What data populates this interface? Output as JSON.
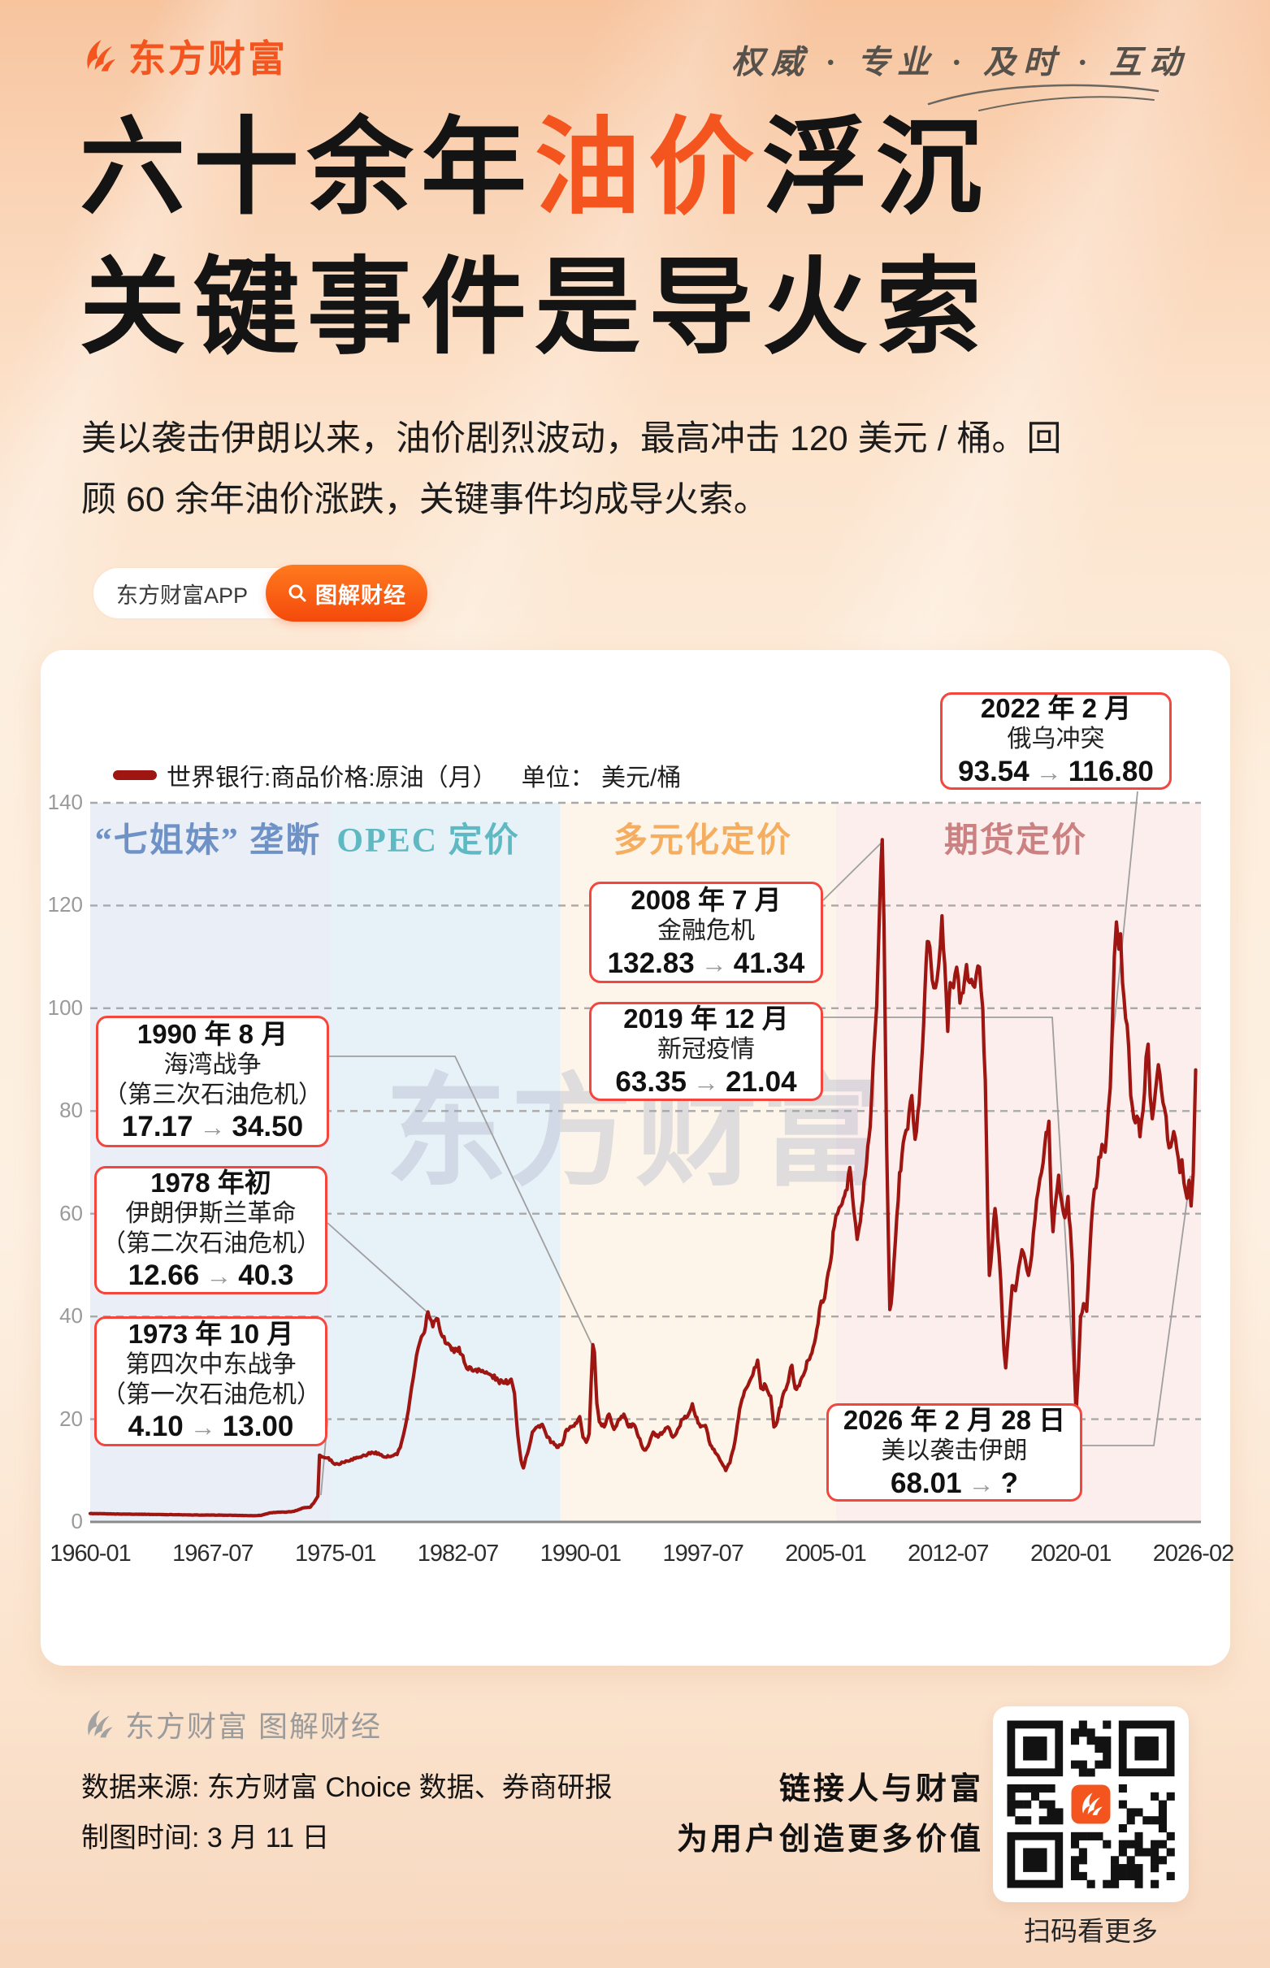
{
  "header": {
    "brand": "东方财富",
    "tagline": "权威 · 专业 · 及时 · 互动"
  },
  "title": {
    "part1": "六十余年",
    "highlight": "油价",
    "part2": "浮沉",
    "line2": "关键事件是导火索"
  },
  "intro": {
    "line1": "美以袭击伊朗以来，油价剧烈波动，最高冲击 120 美元 / 桶。回",
    "line2": "顾 60 余年油价涨跌，关键事件均成导火索。"
  },
  "tags": {
    "app": "东方财富APP",
    "channel": "图解财经"
  },
  "chart_data": {
    "type": "line",
    "legend_label": "世界银行:商品价格:原油（月）",
    "unit_label": "单位： 美元/桶",
    "line_color": "#9E1511",
    "grid": "horizontal dashed",
    "ylim": [
      0,
      140
    ],
    "yticks": [
      0,
      20,
      40,
      60,
      80,
      100,
      120,
      140
    ],
    "xticks": [
      "1960-01",
      "1967-07",
      "1975-01",
      "1982-07",
      "1990-01",
      "1997-07",
      "2005-01",
      "2012-07",
      "2020-01",
      "2026-02"
    ],
    "watermark": "东方财富",
    "eras": [
      {
        "label": "“七姐妹” 垄断",
        "color": "#6E92C6",
        "band": "#EAEEF7",
        "t_start": 1960.0,
        "t_end": 1974.75
      },
      {
        "label": "OPEC 定价",
        "color": "#5FB9C2",
        "band": "#E7F1F8",
        "t_start": 1974.75,
        "t_end": 1988.8
      },
      {
        "label": "多元化定价",
        "color": "#F5AD60",
        "band": "#FDF5EA",
        "t_start": 1988.8,
        "t_end": 2005.7
      },
      {
        "label": "期货定价",
        "color": "#CB8181",
        "band": "#FBEEEC",
        "t_start": 2005.7,
        "t_end": 2026.45
      }
    ],
    "annotations": [
      {
        "date": "1973 年 10 月",
        "lines": [
          "第四次中东战争",
          "（第一次石油危机）"
        ],
        "from": "4.10",
        "to": "13.00"
      },
      {
        "date": "1978 年初",
        "lines": [
          "伊朗伊斯兰革命",
          "（第二次石油危机）"
        ],
        "from": "12.66",
        "to": "40.3"
      },
      {
        "date": "1990 年 8 月",
        "lines": [
          "海湾战争",
          "（第三次石油危机）"
        ],
        "from": "17.17",
        "to": "34.50"
      },
      {
        "date": "2008 年 7 月",
        "lines": [
          "金融危机"
        ],
        "from": "132.83",
        "to": "41.34"
      },
      {
        "date": "2019 年 12 月",
        "lines": [
          "新冠疫情"
        ],
        "from": "63.35",
        "to": "21.04"
      },
      {
        "date": "2022 年 2 月",
        "lines": [
          "俄乌冲突"
        ],
        "from": "93.54",
        "to": "116.80"
      },
      {
        "date": "2026 年 2 月 28 日",
        "lines": [
          "美以袭击伊朗"
        ],
        "from": "68.01",
        "to": "?"
      }
    ],
    "series": [
      {
        "name": "世界银行:商品价格:原油（月）",
        "unit": "美元/桶",
        "points": [
          [
            1960,
            1.63
          ],
          [
            1961,
            1.57
          ],
          [
            1962,
            1.52
          ],
          [
            1963,
            1.5
          ],
          [
            1964,
            1.45
          ],
          [
            1965,
            1.42
          ],
          [
            1966,
            1.36
          ],
          [
            1967,
            1.33
          ],
          [
            1968,
            1.32
          ],
          [
            1969,
            1.27
          ],
          [
            1970,
            1.21
          ],
          [
            1970.5,
            1.3
          ],
          [
            1971,
            1.75
          ],
          [
            1971.5,
            1.9
          ],
          [
            1972,
            1.9
          ],
          [
            1972.5,
            2.05
          ],
          [
            1973,
            2.7
          ],
          [
            1973.5,
            2.9
          ],
          [
            1973.78,
            4.1
          ],
          [
            1973.95,
            5
          ],
          [
            1974.05,
            13
          ],
          [
            1974.3,
            12.6
          ],
          [
            1974.6,
            12.5
          ],
          [
            1975,
            11.2
          ],
          [
            1975.5,
            11.6
          ],
          [
            1976,
            12.2
          ],
          [
            1976.5,
            12.6
          ],
          [
            1977,
            13.2
          ],
          [
            1977.5,
            13.6
          ],
          [
            1978,
            12.66
          ],
          [
            1978.4,
            12.7
          ],
          [
            1978.8,
            13.1
          ],
          [
            1979,
            14.5
          ],
          [
            1979.2,
            17
          ],
          [
            1979.4,
            20
          ],
          [
            1979.6,
            24
          ],
          [
            1979.8,
            28
          ],
          [
            1980,
            32.5
          ],
          [
            1980.2,
            35
          ],
          [
            1980.4,
            36.5
          ],
          [
            1980.55,
            38
          ],
          [
            1980.7,
            40.9
          ],
          [
            1981,
            38
          ],
          [
            1981.3,
            39.5
          ],
          [
            1981.6,
            36
          ],
          [
            1982,
            34.5
          ],
          [
            1982.3,
            33
          ],
          [
            1982.6,
            34
          ],
          [
            1983,
            30.5
          ],
          [
            1983.4,
            29.5
          ],
          [
            1983.8,
            29.8
          ],
          [
            1984.2,
            29
          ],
          [
            1984.6,
            28.5
          ],
          [
            1985,
            27.5
          ],
          [
            1985.4,
            27
          ],
          [
            1985.8,
            27.8
          ],
          [
            1986,
            25
          ],
          [
            1986.2,
            17
          ],
          [
            1986.4,
            12
          ],
          [
            1986.55,
            10.5
          ],
          [
            1986.7,
            12.5
          ],
          [
            1986.9,
            14.5
          ],
          [
            1987.1,
            17.5
          ],
          [
            1987.4,
            18.5
          ],
          [
            1987.7,
            19
          ],
          [
            1988,
            16.5
          ],
          [
            1988.3,
            15.5
          ],
          [
            1988.6,
            14.5
          ],
          [
            1988.9,
            15
          ],
          [
            1989.2,
            18
          ],
          [
            1989.5,
            18.5
          ],
          [
            1989.8,
            19.2
          ],
          [
            1990,
            20.5
          ],
          [
            1990.2,
            16.5
          ],
          [
            1990.4,
            15.5
          ],
          [
            1990.58,
            17.17
          ],
          [
            1990.7,
            27
          ],
          [
            1990.8,
            34.5
          ],
          [
            1990.9,
            33
          ],
          [
            1991.05,
            23
          ],
          [
            1991.2,
            19.5
          ],
          [
            1991.5,
            18.5
          ],
          [
            1991.8,
            21
          ],
          [
            1992.1,
            18
          ],
          [
            1992.4,
            20
          ],
          [
            1992.7,
            21
          ],
          [
            1993,
            18.5
          ],
          [
            1993.3,
            19
          ],
          [
            1993.6,
            16.5
          ],
          [
            1993.95,
            14
          ],
          [
            1994.2,
            14.8
          ],
          [
            1994.5,
            17.5
          ],
          [
            1994.8,
            16.5
          ],
          [
            1995.1,
            17.5
          ],
          [
            1995.4,
            18.5
          ],
          [
            1995.7,
            16.5
          ],
          [
            1996,
            18
          ],
          [
            1996.3,
            20
          ],
          [
            1996.6,
            20.5
          ],
          [
            1996.9,
            23
          ],
          [
            1997.1,
            20.5
          ],
          [
            1997.4,
            18.5
          ],
          [
            1997.7,
            18.8
          ],
          [
            1998,
            15
          ],
          [
            1998.3,
            13.5
          ],
          [
            1998.6,
            12
          ],
          [
            1998.95,
            10
          ],
          [
            1999.2,
            11.5
          ],
          [
            1999.5,
            15.5
          ],
          [
            1999.8,
            22
          ],
          [
            2000.1,
            25.5
          ],
          [
            2000.3,
            26.5
          ],
          [
            2000.5,
            28
          ],
          [
            2000.7,
            30
          ],
          [
            2000.9,
            31.5
          ],
          [
            2001.1,
            26
          ],
          [
            2001.4,
            26.5
          ],
          [
            2001.7,
            24.5
          ],
          [
            2001.9,
            18.5
          ],
          [
            2002.1,
            19.5
          ],
          [
            2002.4,
            24
          ],
          [
            2002.7,
            26.5
          ],
          [
            2003,
            30.5
          ],
          [
            2003.2,
            26
          ],
          [
            2003.45,
            26.5
          ],
          [
            2003.7,
            28.5
          ],
          [
            2004,
            31.5
          ],
          [
            2004.3,
            34
          ],
          [
            2004.6,
            38.5
          ],
          [
            2004.8,
            43
          ],
          [
            2005,
            43.5
          ],
          [
            2005.3,
            49.5
          ],
          [
            2005.6,
            57.5
          ],
          [
            2005.8,
            60
          ],
          [
            2006,
            61.5
          ],
          [
            2006.3,
            64.5
          ],
          [
            2006.55,
            69
          ],
          [
            2006.8,
            60.5
          ],
          [
            2007,
            55
          ],
          [
            2007.2,
            58.5
          ],
          [
            2007.5,
            67.5
          ],
          [
            2007.8,
            77
          ],
          [
            2008,
            90.5
          ],
          [
            2008.2,
            100.5
          ],
          [
            2008.4,
            122
          ],
          [
            2008.54,
            132.83
          ],
          [
            2008.65,
            116
          ],
          [
            2008.8,
            74
          ],
          [
            2008.92,
            54
          ],
          [
            2009,
            41.34
          ],
          [
            2009.15,
            45
          ],
          [
            2009.35,
            55
          ],
          [
            2009.6,
            68
          ],
          [
            2009.9,
            75
          ],
          [
            2010.1,
            76.5
          ],
          [
            2010.35,
            83
          ],
          [
            2010.55,
            74.5
          ],
          [
            2010.8,
            81.5
          ],
          [
            2011,
            92
          ],
          [
            2011.15,
            103
          ],
          [
            2011.3,
            113
          ],
          [
            2011.45,
            112
          ],
          [
            2011.6,
            105.5
          ],
          [
            2011.8,
            104
          ],
          [
            2012,
            108.5
          ],
          [
            2012.2,
            118
          ],
          [
            2012.45,
            103
          ],
          [
            2012.55,
            95.5
          ],
          [
            2012.7,
            105
          ],
          [
            2012.9,
            104
          ],
          [
            2013.1,
            108
          ],
          [
            2013.3,
            101
          ],
          [
            2013.5,
            103
          ],
          [
            2013.7,
            108.5
          ],
          [
            2013.9,
            105
          ],
          [
            2014.1,
            104.5
          ],
          [
            2014.3,
            106.5
          ],
          [
            2014.5,
            108
          ],
          [
            2014.7,
            100
          ],
          [
            2014.85,
            86
          ],
          [
            2015,
            60
          ],
          [
            2015.1,
            48
          ],
          [
            2015.3,
            55
          ],
          [
            2015.45,
            61
          ],
          [
            2015.6,
            55.5
          ],
          [
            2015.8,
            47
          ],
          [
            2016,
            33.5
          ],
          [
            2016.1,
            30
          ],
          [
            2016.3,
            38
          ],
          [
            2016.5,
            46
          ],
          [
            2016.7,
            45
          ],
          [
            2016.9,
            49.5
          ],
          [
            2017.1,
            53
          ],
          [
            2017.3,
            51
          ],
          [
            2017.5,
            48
          ],
          [
            2017.7,
            52
          ],
          [
            2017.9,
            59
          ],
          [
            2018.1,
            64.5
          ],
          [
            2018.3,
            68
          ],
          [
            2018.5,
            73.5
          ],
          [
            2018.75,
            78
          ],
          [
            2018.9,
            62
          ],
          [
            2019,
            56.5
          ],
          [
            2019.15,
            62
          ],
          [
            2019.35,
            67.5
          ],
          [
            2019.5,
            63
          ],
          [
            2019.65,
            60
          ],
          [
            2019.8,
            60.5
          ],
          [
            2019.92,
            63.35
          ],
          [
            2020.05,
            57
          ],
          [
            2020.15,
            50
          ],
          [
            2020.25,
            30
          ],
          [
            2020.33,
            21.04
          ],
          [
            2020.45,
            30
          ],
          [
            2020.55,
            40
          ],
          [
            2020.7,
            42.5
          ],
          [
            2020.85,
            41
          ],
          [
            2021,
            52.5
          ],
          [
            2021.15,
            62
          ],
          [
            2021.3,
            65
          ],
          [
            2021.45,
            71
          ],
          [
            2021.6,
            73.5
          ],
          [
            2021.75,
            72
          ],
          [
            2021.9,
            80
          ],
          [
            2022,
            84.5
          ],
          [
            2022.08,
            93.54
          ],
          [
            2022.2,
            110
          ],
          [
            2022.3,
            116.8
          ],
          [
            2022.42,
            111.5
          ],
          [
            2022.5,
            114.5
          ],
          [
            2022.6,
            105
          ],
          [
            2022.75,
            98
          ],
          [
            2022.9,
            92.5
          ],
          [
            2023,
            83
          ],
          [
            2023.15,
            78.5
          ],
          [
            2023.3,
            79
          ],
          [
            2023.45,
            75
          ],
          [
            2023.6,
            80
          ],
          [
            2023.75,
            90.5
          ],
          [
            2023.85,
            93
          ],
          [
            2023.95,
            83
          ],
          [
            2024.05,
            78.5
          ],
          [
            2024.2,
            83.5
          ],
          [
            2024.35,
            89
          ],
          [
            2024.5,
            84
          ],
          [
            2024.65,
            80.5
          ],
          [
            2024.8,
            74.5
          ],
          [
            2024.95,
            73
          ],
          [
            2025.1,
            76
          ],
          [
            2025.25,
            72.5
          ],
          [
            2025.4,
            68
          ],
          [
            2025.5,
            70.5
          ],
          [
            2025.6,
            66
          ],
          [
            2025.75,
            63
          ],
          [
            2025.85,
            66.5
          ],
          [
            2025.95,
            61.5
          ],
          [
            2026.05,
            68.01
          ],
          [
            2026.17,
            88
          ]
        ]
      }
    ]
  },
  "footer": {
    "logo_text": "东方财富 图解财经",
    "source": "数据来源: 东方财富 Choice 数据、券商研报",
    "time": "制图时间: 3 月 11 日",
    "slogan1": "链接人与财富",
    "slogan2": "为用户创造更多价值",
    "qr_caption": "扫码看更多"
  }
}
